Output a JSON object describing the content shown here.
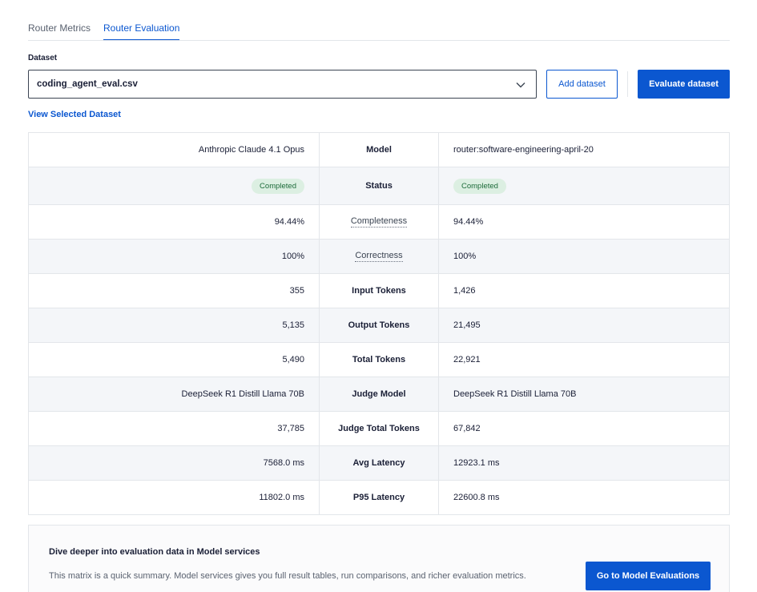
{
  "tabs": [
    {
      "label": "Router Metrics",
      "active": false
    },
    {
      "label": "Router Evaluation",
      "active": true
    }
  ],
  "dataset": {
    "label": "Dataset",
    "selected": "coding_agent_eval.csv",
    "add_button": "Add dataset",
    "evaluate_button": "Evaluate dataset",
    "view_link": "View Selected Dataset"
  },
  "matrix": {
    "rows": [
      {
        "left": "Anthropic Claude 4.1 Opus",
        "metric": "Model",
        "right": "router:software-engineering-april-20"
      },
      {
        "left": "Completed",
        "metric": "Status",
        "right": "Completed"
      },
      {
        "left": "94.44%",
        "metric": "Completeness",
        "right": "94.44%"
      },
      {
        "left": "100%",
        "metric": "Correctness",
        "right": "100%"
      },
      {
        "left": "355",
        "metric": "Input Tokens",
        "right": "1,426"
      },
      {
        "left": "5,135",
        "metric": "Output Tokens",
        "right": "21,495"
      },
      {
        "left": "5,490",
        "metric": "Total Tokens",
        "right": "22,921"
      },
      {
        "left": "DeepSeek R1 Distill Llama 70B",
        "metric": "Judge Model",
        "right": "DeepSeek R1 Distill Llama 70B"
      },
      {
        "left": "37,785",
        "metric": "Judge Total Tokens",
        "right": "67,842"
      },
      {
        "left": "7568.0 ms",
        "metric": "Avg Latency",
        "right": "12923.1 ms"
      },
      {
        "left": "11802.0 ms",
        "metric": "P95 Latency",
        "right": "22600.8 ms"
      }
    ]
  },
  "cta": {
    "title": "Dive deeper into evaluation data in Model services",
    "text": "This matrix is a quick summary. Model services gives you full result tables, run comparisons, and richer evaluation metrics.",
    "button": "Go to Model Evaluations"
  },
  "colors": {
    "accent": "#0b57d0",
    "badge_bg": "#dcefe2",
    "badge_text": "#1d6b3a",
    "alt_row": "#f4f6f9"
  },
  "icons": {
    "select": "chevron-down-icon"
  }
}
